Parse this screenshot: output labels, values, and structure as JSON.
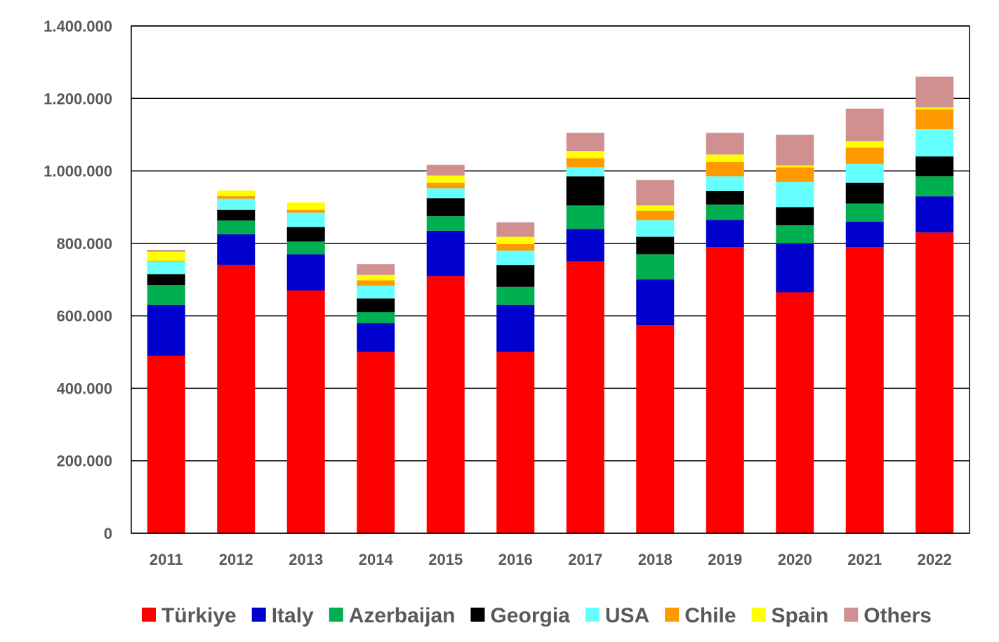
{
  "chart_data": {
    "type": "bar",
    "stacked": true,
    "title": "",
    "xlabel": "",
    "ylabel": "",
    "ylim": [
      0,
      1400000
    ],
    "ytick_values": [
      0,
      200000,
      400000,
      600000,
      800000,
      1000000,
      1200000,
      1400000
    ],
    "ytick_labels": [
      "0",
      "200.000",
      "400.000",
      "600.000",
      "800.000",
      "1.000.000",
      "1.200.000",
      "1.400.000"
    ],
    "grid": true,
    "legend_position": "bottom",
    "categories": [
      "2011",
      "2012",
      "2013",
      "2014",
      "2015",
      "2016",
      "2017",
      "2018",
      "2019",
      "2020",
      "2021",
      "2022"
    ],
    "series": [
      {
        "name": "Türkiye",
        "color": "#ff0000",
        "values": [
          490000,
          740000,
          670000,
          500000,
          710000,
          500000,
          750000,
          575000,
          790000,
          665000,
          790000,
          830000
        ]
      },
      {
        "name": "Italy",
        "color": "#0000cc",
        "values": [
          140000,
          85000,
          100000,
          80000,
          125000,
          130000,
          90000,
          125000,
          75000,
          135000,
          70000,
          100000
        ]
      },
      {
        "name": "Azerbaijan",
        "color": "#00b050",
        "values": [
          55000,
          38000,
          35000,
          30000,
          40000,
          50000,
          65000,
          70000,
          42000,
          50000,
          50000,
          55000
        ]
      },
      {
        "name": "Georgia",
        "color": "#000000",
        "values": [
          30000,
          30000,
          40000,
          38000,
          50000,
          60000,
          80000,
          48000,
          38000,
          50000,
          57000,
          55000
        ]
      },
      {
        "name": "USA",
        "color": "#66ffff",
        "values": [
          35000,
          30000,
          40000,
          35000,
          27000,
          40000,
          25000,
          46000,
          40000,
          70000,
          52000,
          75000
        ]
      },
      {
        "name": "Chile",
        "color": "#ff9900",
        "values": [
          2000,
          8000,
          8000,
          15000,
          15000,
          18000,
          25000,
          26000,
          40000,
          40000,
          45000,
          55000
        ]
      },
      {
        "name": "Spain",
        "color": "#ffff00",
        "values": [
          25000,
          15000,
          20000,
          15000,
          20000,
          20000,
          20000,
          15000,
          20000,
          5000,
          18000,
          5000
        ]
      },
      {
        "name": "Others",
        "color": "#d09090",
        "values": [
          5000,
          0,
          0,
          30000,
          30000,
          40000,
          50000,
          70000,
          60000,
          85000,
          90000,
          85000
        ]
      }
    ]
  }
}
